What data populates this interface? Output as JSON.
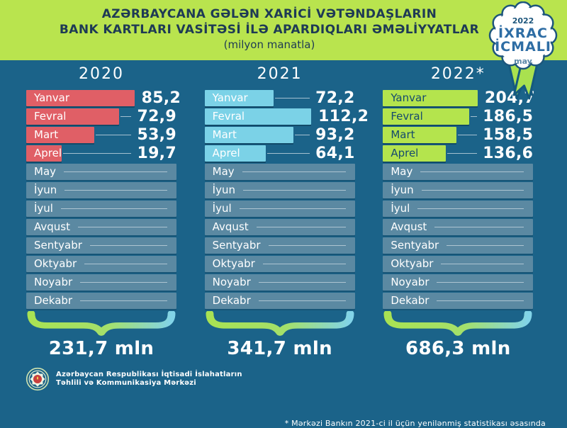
{
  "header": {
    "title_line1": "AZƏRBAYCANA GƏLƏN XARİCİ VƏTƏNDAŞLARIN",
    "title_line2": "BANK KARTLARI VASİTƏSİ İLƏ APARDIQLARI ƏMƏLİYYATLAR",
    "subtitle": "(milyon manatla)"
  },
  "badge": {
    "year": "2022",
    "line1": "İXRAC",
    "line2": "İCMALI",
    "month": "may"
  },
  "chart_data": {
    "type": "bar",
    "title": "Azərbaycana gələn xarici vətəndaşların bank kartları vasitəsi ilə apardıqları əməliyyatlar",
    "unit": "milyon manatla",
    "categories": [
      "Yanvar",
      "Fevral",
      "Mart",
      "Aprel",
      "May",
      "İyun",
      "İyul",
      "Avqust",
      "Sentyabr",
      "Oktyabr",
      "Noyabr",
      "Dekabr"
    ],
    "series": [
      {
        "year": "2020",
        "color": "#e05f66",
        "label_color": "#ffffff",
        "values": [
          85.2,
          72.9,
          53.9,
          19.7
        ],
        "display": [
          "85,2",
          "72,9",
          "53,9",
          "19,7"
        ],
        "total": "231,7 mln"
      },
      {
        "year": "2021",
        "color": "#7bd2e7",
        "label_color": "#ffffff",
        "values": [
          72.2,
          112.2,
          93.2,
          64.1
        ],
        "display": [
          "72,2",
          "112,2",
          "93,2",
          "64,1"
        ],
        "total": "341,7 mln"
      },
      {
        "year": "2022*",
        "color": "#b4e44d",
        "label_color": "#154a6e",
        "values": [
          204.7,
          186.5,
          158.5,
          136.6
        ],
        "display": [
          "204,7",
          "186,5",
          "158,5",
          "136,6"
        ],
        "total": "686,3 mln"
      }
    ],
    "inactive_months_color": "#5b89a2",
    "layout": "three columns, one per year; months Jan–Apr have value bars, May–Dec empty placeholders; gradient brace under each column with yearly total"
  },
  "footnote": {
    "text": "* Mərkəzi Bankın 2021-ci il üçün yenilənmiş statistikası əsasında"
  },
  "footer": {
    "org_line1": "Azərbaycan Respublikası İqtisadi İslahatların",
    "org_line2": "Təhlili və Kommunikasiya Mərkəzi"
  },
  "colors": {
    "header_background": "#b9e44e",
    "main_background": "#1b6389",
    "title_text": "#1e3a55",
    "badge_text_blue": "#2e6da4",
    "brace_gradient": [
      "#a9e253",
      "#82d4e8"
    ]
  }
}
